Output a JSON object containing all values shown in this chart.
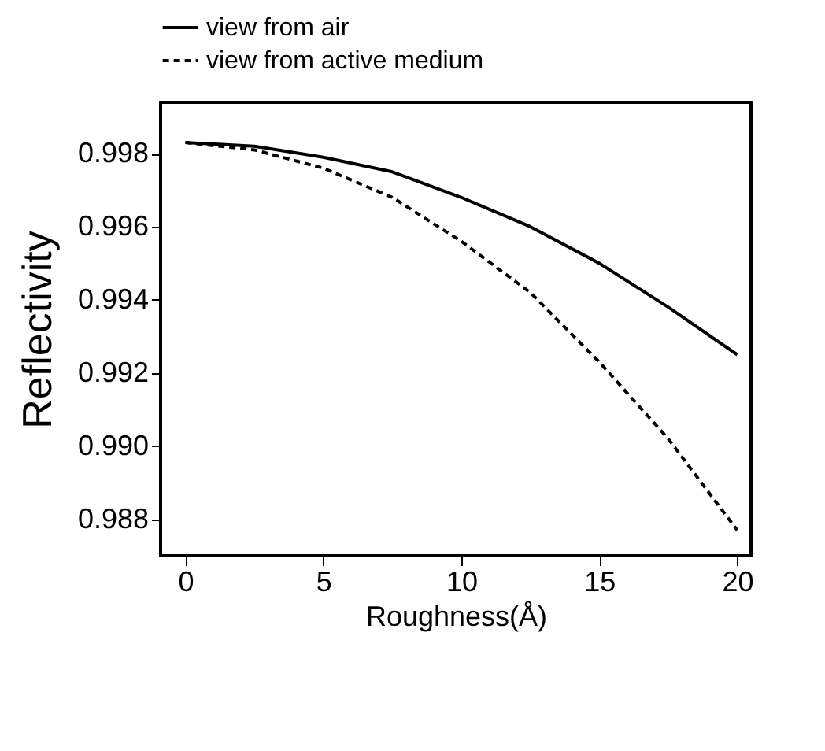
{
  "chart_data": {
    "type": "line",
    "xlabel": "Roughness(Å)",
    "ylabel": "Reflectivity",
    "x": [
      0,
      2.5,
      5,
      7.5,
      10,
      12.5,
      15,
      17.5,
      20
    ],
    "series": [
      {
        "name": "view from air",
        "color": "#000000",
        "line_style": "solid",
        "values": [
          0.9983,
          0.9982,
          0.9979,
          0.9975,
          0.9968,
          0.996,
          0.995,
          0.9938,
          0.9925
        ]
      },
      {
        "name": "view from active medium",
        "color": "#000000",
        "line_style": "dashed",
        "values": [
          0.9983,
          0.9981,
          0.9976,
          0.9968,
          0.9956,
          0.9942,
          0.9923,
          0.9902,
          0.9877
        ]
      }
    ],
    "xlim": [
      -0.9,
      20.5
    ],
    "xticks": [
      0,
      5,
      10,
      15,
      20
    ],
    "ylim": [
      0.987,
      0.9994
    ],
    "yticks": [
      0.988,
      {
        "value": 0.99,
        "label": "0.990"
      },
      0.992,
      0.994,
      0.996,
      0.998
    ],
    "grid": false,
    "legend": "top",
    "marker": "none"
  }
}
